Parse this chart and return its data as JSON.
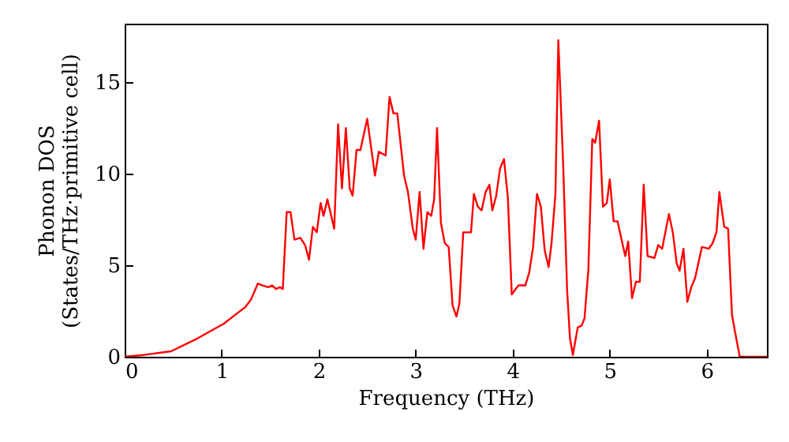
{
  "chart_data": {
    "type": "line",
    "xlabel": "Frequency (THz)",
    "ylabel": "Phonon DOS\n(States/THz·primitive cell)",
    "xlim": [
      0,
      6.62
    ],
    "ylim": [
      0,
      18.2
    ],
    "xticks": [
      0,
      1,
      2,
      3,
      4,
      5,
      6
    ],
    "yticks": [
      0,
      5,
      10,
      15
    ],
    "series": [
      {
        "color": "#ff0000",
        "x": [
          0,
          0.2,
          0.48,
          0.75,
          1.02,
          1.24,
          1.3,
          1.373,
          1.42,
          1.48,
          1.52,
          1.56,
          1.6,
          1.63,
          1.67,
          1.71,
          1.75,
          1.81,
          1.86,
          1.9,
          1.94,
          1.98,
          2.02,
          2.05,
          2.09,
          2.16,
          2.2,
          2.24,
          2.28,
          2.32,
          2.35,
          2.39,
          2.43,
          2.5,
          2.58,
          2.62,
          2.69,
          2.73,
          2.77,
          2.81,
          2.88,
          2.92,
          2.97,
          3.0,
          3.04,
          3.08,
          3.12,
          3.16,
          3.19,
          3.22,
          3.26,
          3.3,
          3.34,
          3.38,
          3.42,
          3.45,
          3.49,
          3.57,
          3.6,
          3.64,
          3.68,
          3.72,
          3.76,
          3.79,
          3.83,
          3.87,
          3.91,
          3.95,
          3.99,
          4.03,
          4.06,
          4.13,
          4.17,
          4.21,
          4.25,
          4.29,
          4.33,
          4.37,
          4.4,
          4.44,
          4.47,
          4.52,
          4.56,
          4.59,
          4.62,
          4.67,
          4.71,
          4.74,
          4.78,
          4.82,
          4.85,
          4.89,
          4.93,
          4.97,
          5.0,
          5.04,
          5.08,
          5.16,
          5.19,
          5.23,
          5.27,
          5.31,
          5.35,
          5.39,
          5.46,
          5.5,
          5.54,
          5.61,
          5.65,
          5.69,
          5.72,
          5.76,
          5.8,
          5.84,
          5.88,
          5.95,
          6.02,
          6.06,
          6.1,
          6.13,
          6.18,
          6.22,
          6.26,
          6.29,
          6.34,
          6.62
        ],
        "values": [
          0,
          0.1,
          0.3,
          1.0,
          1.8,
          2.7,
          3.1,
          4.0,
          3.9,
          3.8,
          3.9,
          3.7,
          3.8,
          3.7,
          7.9,
          7.9,
          6.4,
          6.5,
          6.1,
          5.3,
          7.1,
          6.8,
          8.4,
          7.7,
          8.6,
          7.0,
          12.7,
          9.2,
          12.5,
          9.2,
          8.8,
          11.3,
          11.3,
          13.0,
          9.9,
          11.2,
          11.0,
          14.2,
          13.3,
          13.3,
          9.9,
          9.0,
          7.0,
          6.4,
          9.0,
          5.9,
          7.9,
          7.7,
          8.6,
          12.5,
          7.3,
          6.2,
          6.0,
          2.8,
          2.2,
          2.9,
          6.8,
          6.8,
          8.9,
          8.2,
          8.0,
          9.0,
          9.4,
          8.0,
          8.8,
          10.3,
          10.8,
          8.7,
          3.4,
          3.7,
          3.9,
          3.9,
          4.6,
          6.0,
          8.9,
          8.2,
          5.8,
          4.9,
          6.2,
          8.9,
          17.3,
          10.5,
          3.7,
          1.0,
          0.1,
          1.6,
          1.7,
          2.1,
          4.8,
          11.9,
          11.7,
          12.9,
          8.2,
          8.4,
          9.7,
          7.4,
          7.4,
          5.5,
          6.3,
          3.2,
          4.1,
          4.1,
          9.4,
          5.5,
          5.4,
          6.1,
          5.9,
          7.8,
          6.8,
          5.1,
          4.7,
          5.9,
          3.0,
          3.8,
          4.3,
          6.0,
          5.9,
          6.2,
          6.8,
          9.0,
          7.1,
          7.0,
          2.3,
          1.4,
          0,
          0
        ]
      }
    ]
  }
}
